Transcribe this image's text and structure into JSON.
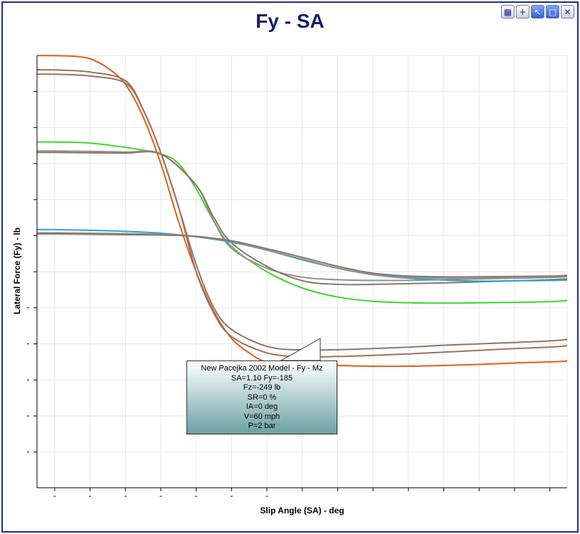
{
  "window": {
    "toolbar": [
      {
        "name": "palette-icon",
        "glyph": "▦"
      },
      {
        "name": "crosshair-icon",
        "glyph": "+"
      },
      {
        "name": "pointer-icon",
        "glyph": "↖"
      },
      {
        "name": "maximize-icon",
        "glyph": "□"
      },
      {
        "name": "close-icon",
        "glyph": "✕"
      }
    ]
  },
  "chart_data": {
    "type": "line",
    "title": "Fy - SA",
    "xlabel": "Slip Angle (SA) - deg",
    "ylabel": "Lateral Force (Fy) - lb",
    "x_tick_count": 15,
    "y_tick_count": 12,
    "grid": true,
    "series": [
      {
        "color": "#e35d14",
        "points": [
          [
            -1,
            0.02
          ],
          [
            0,
            0.05
          ],
          [
            0.5,
            0.2
          ],
          [
            1,
            0.9
          ],
          [
            1.5,
            3.5
          ],
          [
            2,
            8
          ],
          [
            2.5,
            17
          ],
          [
            3,
            30
          ],
          [
            3.5,
            46
          ],
          [
            4,
            60
          ],
          [
            4.5,
            71
          ],
          [
            5,
            78.5
          ],
          [
            5.5,
            82.5
          ],
          [
            6,
            85
          ],
          [
            7,
            85.8
          ],
          [
            8,
            86
          ],
          [
            9,
            86.2
          ],
          [
            10,
            86.2
          ],
          [
            11,
            86
          ],
          [
            12,
            85.7
          ],
          [
            13,
            85.3
          ],
          [
            14,
            85
          ],
          [
            15,
            84.8
          ]
        ]
      },
      {
        "color": "#8a7766",
        "points": [
          [
            -1,
            4
          ],
          [
            0,
            4
          ],
          [
            1,
            4.6
          ],
          [
            2,
            7
          ],
          [
            2.5,
            15
          ],
          [
            3,
            27
          ],
          [
            3.5,
            42
          ],
          [
            4,
            58
          ],
          [
            4.5,
            70
          ],
          [
            5,
            76
          ],
          [
            6,
            80.7
          ],
          [
            7,
            81.7
          ],
          [
            8,
            81.6
          ],
          [
            9,
            81.3
          ],
          [
            10,
            80.9
          ],
          [
            11,
            80.4
          ],
          [
            12,
            80
          ],
          [
            13,
            79.6
          ],
          [
            14,
            79.2
          ],
          [
            15,
            78.8
          ]
        ]
      },
      {
        "color": "#a06f5c",
        "points": [
          [
            -1,
            5.2
          ],
          [
            0,
            5.2
          ],
          [
            1,
            5.7
          ],
          [
            2,
            7.7
          ],
          [
            2.5,
            15
          ],
          [
            3,
            27
          ],
          [
            3.5,
            42
          ],
          [
            4,
            60
          ],
          [
            4.5,
            71.5
          ],
          [
            5,
            78
          ],
          [
            6,
            82.5
          ],
          [
            7,
            83.6
          ],
          [
            8,
            83.5
          ],
          [
            9,
            83.2
          ],
          [
            10,
            82.8
          ],
          [
            11,
            82.3
          ],
          [
            12,
            81.8
          ],
          [
            13,
            81.3
          ],
          [
            14,
            80.9
          ],
          [
            15,
            80.5
          ]
        ]
      },
      {
        "color": "#3ed62b",
        "points": [
          [
            -1,
            24
          ],
          [
            0,
            24
          ],
          [
            1,
            24.3
          ],
          [
            2,
            25.5
          ],
          [
            3,
            27.3
          ],
          [
            3.5,
            30
          ],
          [
            4,
            37
          ],
          [
            4.5,
            46
          ],
          [
            5,
            53
          ],
          [
            6,
            60
          ],
          [
            7,
            64.5
          ],
          [
            8,
            67
          ],
          [
            9,
            68.2
          ],
          [
            10,
            68.6
          ],
          [
            11,
            68.7
          ],
          [
            12,
            68.6
          ],
          [
            13,
            68.5
          ],
          [
            14,
            68.3
          ],
          [
            15,
            68
          ]
        ]
      },
      {
        "color": "#909090",
        "points": [
          [
            -1,
            26.5
          ],
          [
            0,
            26.5
          ],
          [
            1,
            26.6
          ],
          [
            2,
            26.8
          ],
          [
            3,
            27.3
          ],
          [
            4,
            36
          ],
          [
            4.5,
            46
          ],
          [
            5,
            53.5
          ],
          [
            6,
            59
          ],
          [
            7,
            61.5
          ],
          [
            8,
            62.2
          ],
          [
            9,
            62.4
          ],
          [
            10,
            62.4
          ],
          [
            11,
            62.2
          ],
          [
            12,
            62
          ],
          [
            13,
            61.8
          ],
          [
            14,
            61.6
          ],
          [
            15,
            61.4
          ]
        ]
      },
      {
        "color": "#8a7766",
        "points": [
          [
            -1,
            26.9
          ],
          [
            0,
            26.9
          ],
          [
            1,
            27
          ],
          [
            2,
            27.1
          ],
          [
            3,
            27.4
          ],
          [
            4,
            36
          ],
          [
            4.5,
            45
          ],
          [
            5,
            52
          ],
          [
            6,
            58.5
          ],
          [
            7,
            62.5
          ],
          [
            8,
            63.5
          ],
          [
            9,
            63.5
          ],
          [
            10,
            63.3
          ],
          [
            11,
            63.1
          ],
          [
            12,
            62.8
          ],
          [
            13,
            62.5
          ],
          [
            14,
            62.2
          ],
          [
            15,
            62
          ]
        ]
      },
      {
        "color": "#2f9fe0",
        "points": [
          [
            -1,
            48.3
          ],
          [
            0,
            48.3
          ],
          [
            1,
            48.5
          ],
          [
            2,
            48.8
          ],
          [
            3,
            49.3
          ],
          [
            4,
            50.3
          ],
          [
            5,
            51.8
          ],
          [
            6,
            54
          ],
          [
            7,
            56.7
          ],
          [
            8,
            59
          ],
          [
            9,
            60.8
          ],
          [
            10,
            61.8
          ],
          [
            11,
            62.3
          ],
          [
            12,
            62.6
          ],
          [
            13,
            62.5
          ],
          [
            14,
            62.4
          ],
          [
            15,
            62.3
          ]
        ]
      },
      {
        "color": "#909090",
        "points": [
          [
            -1,
            49.2
          ],
          [
            0,
            49.2
          ],
          [
            1,
            49.3
          ],
          [
            2,
            49.4
          ],
          [
            3,
            49.6
          ],
          [
            4,
            50.2
          ],
          [
            5,
            51.6
          ],
          [
            6,
            54
          ],
          [
            7,
            56.5
          ],
          [
            8,
            59
          ],
          [
            9,
            60.8
          ],
          [
            10,
            61.5
          ],
          [
            11,
            61.8
          ],
          [
            12,
            61.8
          ],
          [
            13,
            61.7
          ],
          [
            14,
            61.5
          ],
          [
            15,
            61.3
          ]
        ]
      },
      {
        "color": "#8a7766",
        "points": [
          [
            -1,
            49.5
          ],
          [
            0,
            49.5
          ],
          [
            1,
            49.6
          ],
          [
            2,
            49.7
          ],
          [
            3,
            49.8
          ],
          [
            4,
            50.2
          ],
          [
            5,
            51.4
          ],
          [
            6,
            53.6
          ],
          [
            7,
            56
          ],
          [
            8,
            58.5
          ],
          [
            9,
            60.4
          ],
          [
            10,
            61.2
          ],
          [
            11,
            61.4
          ],
          [
            12,
            61.4
          ],
          [
            13,
            61.3
          ],
          [
            14,
            61.2
          ],
          [
            15,
            61
          ]
        ]
      }
    ],
    "tooltip": {
      "lines": [
        "New Pacejka 2002 Model - Fy - Mz",
        "SA=1.10  Fy=-185",
        "Fz=-249 lb",
        "SR=0 %",
        "IA=0 deg",
        "V=60 mph",
        "P=2 bar"
      ]
    }
  }
}
